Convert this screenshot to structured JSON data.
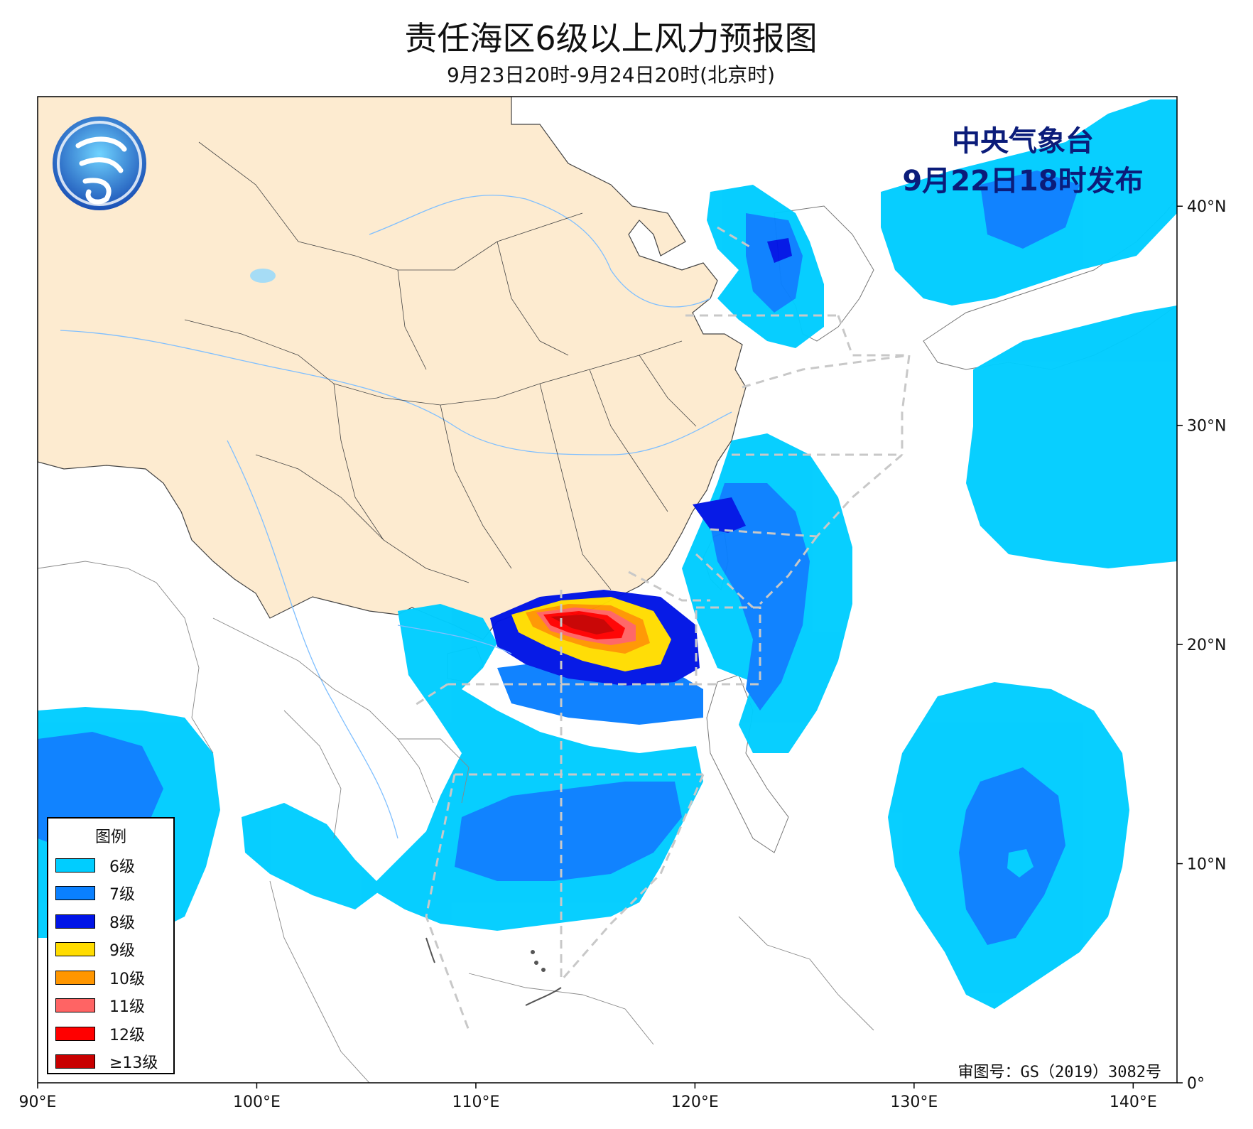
{
  "header": {
    "title": "责任海区6级以上风力预报图",
    "subtitle": "9月23日20时-9月24日20时(北京时)"
  },
  "issuer": {
    "line1": "中央气象台",
    "line2": "9月22日18时发布"
  },
  "approval": "审图号：GS（2019）3082号",
  "axes": {
    "x_ticks": [
      {
        "lon": 90,
        "label": "90°E"
      },
      {
        "lon": 100,
        "label": "100°E"
      },
      {
        "lon": 110,
        "label": "110°E"
      },
      {
        "lon": 120,
        "label": "120°E"
      },
      {
        "lon": 130,
        "label": "130°E"
      },
      {
        "lon": 140,
        "label": "140°E"
      }
    ],
    "y_ticks": [
      {
        "lat": 0,
        "label": "0°"
      },
      {
        "lat": 10,
        "label": "10°N"
      },
      {
        "lat": 20,
        "label": "20°N"
      },
      {
        "lat": 30,
        "label": "30°N"
      },
      {
        "lat": 40,
        "label": "40°N"
      }
    ],
    "lon_range": [
      90,
      142
    ],
    "lat_range": [
      0,
      45
    ]
  },
  "legend": {
    "title": "图例",
    "items": [
      {
        "label": "6级",
        "color": "#00cdff"
      },
      {
        "label": "7级",
        "color": "#0a80ff"
      },
      {
        "label": "8级",
        "color": "#0014e6"
      },
      {
        "label": "9级",
        "color": "#ffdc00"
      },
      {
        "label": "10级",
        "color": "#ff9600"
      },
      {
        "label": "11级",
        "color": "#ff6464"
      },
      {
        "label": "12级",
        "color": "#ff0000"
      },
      {
        "label": "≥13级",
        "color": "#c80000"
      }
    ]
  },
  "colors": {
    "china_land": "#fdebd0",
    "boundary_dash": "#cccccc",
    "river": "#7fbfff",
    "issuer_text": "#0b1c7a"
  },
  "icons": {
    "logo": "cma-logo-icon"
  }
}
